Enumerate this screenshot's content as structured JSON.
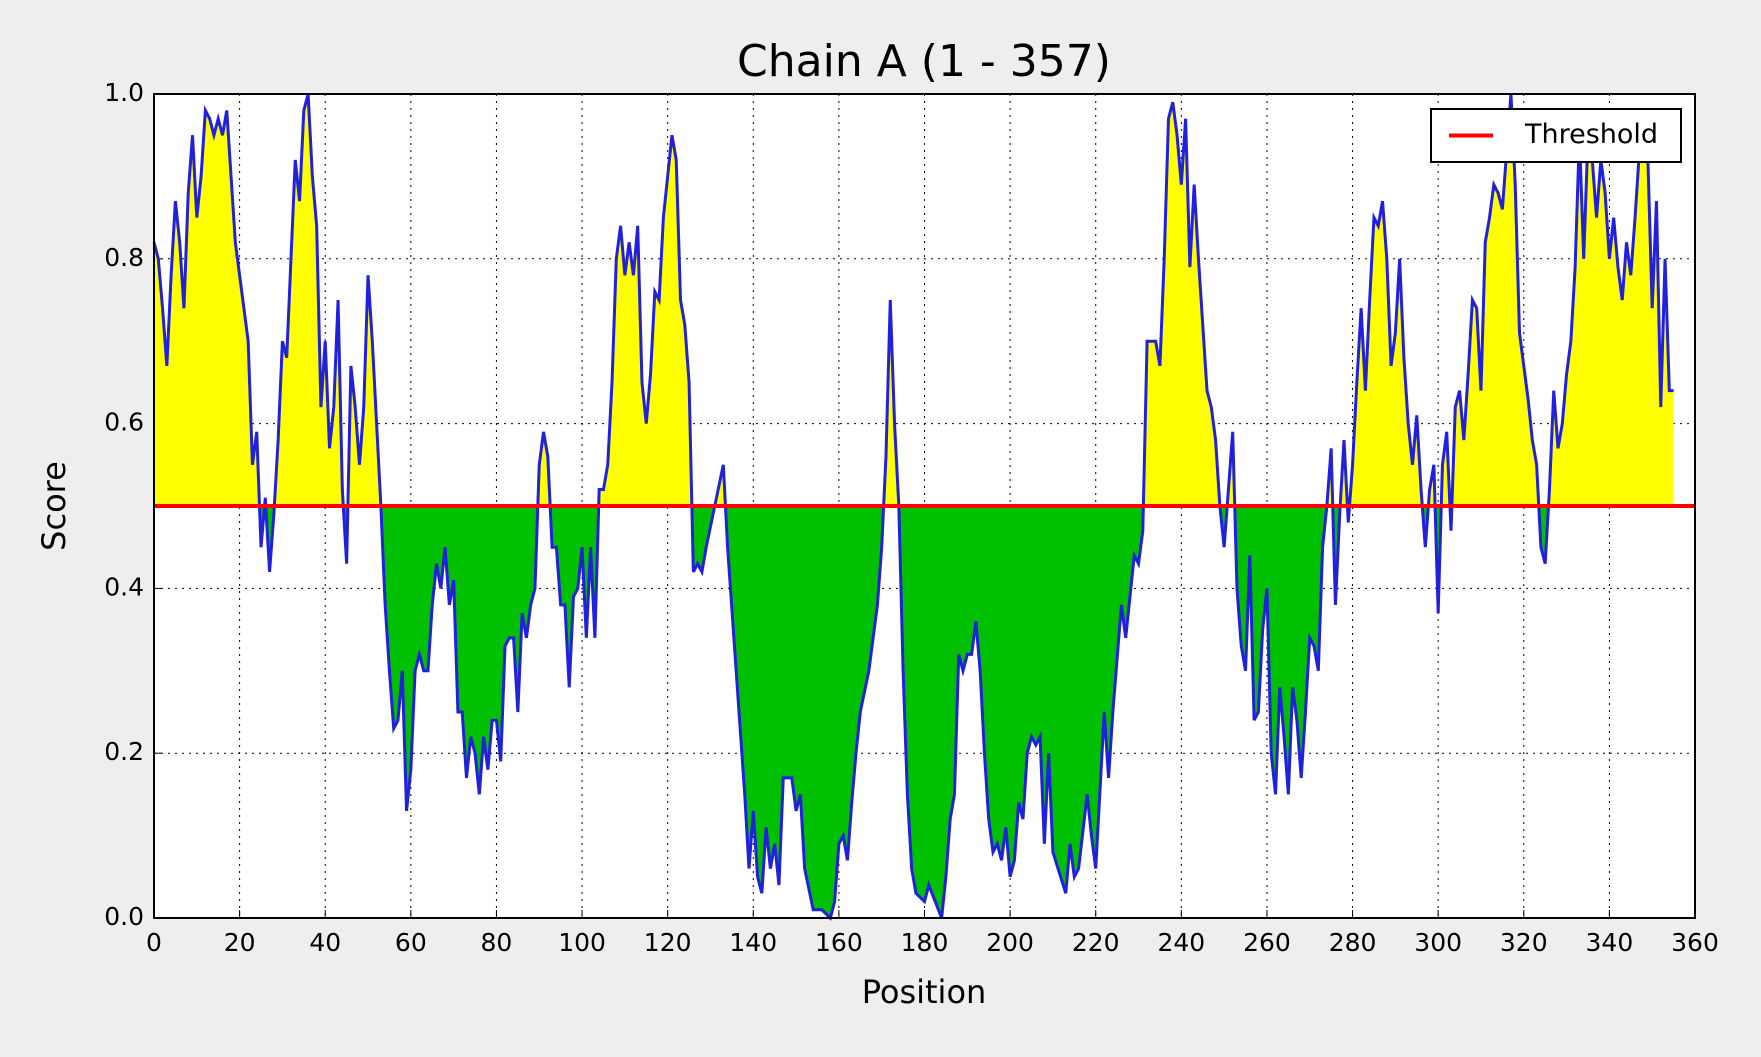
{
  "chart_data": {
    "type": "line",
    "title": "Chain A (1 - 357)",
    "x_label": "Position",
    "y_label": "Score",
    "x": [
      0,
      1,
      2,
      3,
      4,
      5,
      6,
      7,
      8,
      9,
      10,
      11,
      12,
      13,
      14,
      15,
      16,
      17,
      18,
      19,
      20,
      21,
      22,
      23,
      24,
      25,
      26,
      27,
      28,
      29,
      30,
      31,
      32,
      33,
      34,
      35,
      36,
      37,
      38,
      39,
      40,
      41,
      42,
      43,
      44,
      45,
      46,
      47,
      48,
      49,
      50,
      51,
      52,
      53,
      54,
      55,
      56,
      57,
      58,
      59,
      60,
      61,
      62,
      63,
      64,
      65,
      66,
      67,
      68,
      69,
      70,
      71,
      72,
      73,
      74,
      75,
      76,
      77,
      78,
      79,
      80,
      81,
      82,
      83,
      84,
      85,
      86,
      87,
      88,
      89,
      90,
      91,
      92,
      93,
      94,
      95,
      96,
      97,
      98,
      99,
      100,
      101,
      102,
      103,
      104,
      105,
      106,
      107,
      108,
      109,
      110,
      111,
      112,
      113,
      114,
      115,
      116,
      117,
      118,
      119,
      120,
      121,
      122,
      123,
      124,
      125,
      126,
      127,
      128,
      129,
      131,
      133,
      134,
      136,
      138,
      139,
      140,
      141,
      142,
      143,
      144,
      145,
      146,
      147,
      149,
      150,
      151,
      152,
      154,
      156,
      158,
      159,
      160,
      161,
      162,
      163,
      164,
      165,
      167,
      169,
      170,
      171,
      172,
      173,
      174,
      175,
      176,
      177,
      178,
      180,
      181,
      184,
      185,
      186,
      187,
      188,
      189,
      190,
      191,
      192,
      193,
      194,
      195,
      196,
      197,
      198,
      199,
      200,
      201,
      202,
      203,
      204,
      205,
      206,
      207,
      208,
      209,
      210,
      213,
      214,
      215,
      216,
      218,
      219,
      220,
      222,
      223,
      224,
      226,
      227,
      229,
      230,
      231,
      232,
      234,
      235,
      236,
      237,
      238,
      239,
      240,
      241,
      242,
      243,
      244,
      245,
      246,
      247,
      248,
      249,
      250,
      251,
      252,
      253,
      254,
      255,
      256,
      257,
      258,
      259,
      260,
      261,
      262,
      263,
      264,
      265,
      266,
      267,
      268,
      269,
      270,
      271,
      272,
      273,
      274,
      275,
      276,
      277,
      278,
      279,
      280,
      281,
      282,
      283,
      284,
      285,
      286,
      287,
      288,
      289,
      290,
      291,
      292,
      293,
      294,
      295,
      296,
      297,
      298,
      299,
      300,
      301,
      302,
      303,
      304,
      305,
      306,
      307,
      308,
      309,
      310,
      311,
      312,
      313,
      314,
      315,
      316,
      317,
      318,
      319,
      320,
      321,
      322,
      323,
      324,
      325,
      326,
      327,
      328,
      329,
      330,
      331,
      332,
      333,
      334,
      335,
      336,
      337,
      338,
      339,
      340,
      341,
      342,
      343,
      344,
      345,
      346,
      347,
      348,
      349,
      350,
      351,
      352,
      353,
      354,
      355
    ],
    "series": [
      {
        "name": "Score",
        "color": "#2020dd",
        "values": [
          0.82,
          0.8,
          0.74,
          0.67,
          0.78,
          0.87,
          0.82,
          0.74,
          0.88,
          0.95,
          0.85,
          0.9,
          0.98,
          0.97,
          0.95,
          0.97,
          0.95,
          0.98,
          0.9,
          0.82,
          0.78,
          0.74,
          0.7,
          0.55,
          0.59,
          0.45,
          0.51,
          0.42,
          0.49,
          0.58,
          0.7,
          0.68,
          0.8,
          0.92,
          0.87,
          0.98,
          1.0,
          0.9,
          0.84,
          0.62,
          0.7,
          0.57,
          0.62,
          0.75,
          0.52,
          0.43,
          0.67,
          0.62,
          0.55,
          0.62,
          0.78,
          0.7,
          0.6,
          0.5,
          0.38,
          0.3,
          0.23,
          0.24,
          0.3,
          0.13,
          0.18,
          0.3,
          0.32,
          0.3,
          0.3,
          0.38,
          0.43,
          0.4,
          0.45,
          0.38,
          0.41,
          0.25,
          0.25,
          0.17,
          0.22,
          0.2,
          0.15,
          0.22,
          0.18,
          0.24,
          0.24,
          0.19,
          0.33,
          0.34,
          0.34,
          0.25,
          0.37,
          0.34,
          0.38,
          0.4,
          0.55,
          0.59,
          0.56,
          0.45,
          0.45,
          0.38,
          0.38,
          0.28,
          0.39,
          0.4,
          0.45,
          0.34,
          0.45,
          0.34,
          0.52,
          0.52,
          0.55,
          0.65,
          0.8,
          0.84,
          0.78,
          0.82,
          0.78,
          0.84,
          0.65,
          0.6,
          0.66,
          0.76,
          0.75,
          0.85,
          0.9,
          0.95,
          0.92,
          0.75,
          0.72,
          0.65,
          0.42,
          0.43,
          0.42,
          0.45,
          0.5,
          0.55,
          0.45,
          0.3,
          0.15,
          0.06,
          0.13,
          0.05,
          0.03,
          0.11,
          0.06,
          0.09,
          0.04,
          0.17,
          0.17,
          0.13,
          0.15,
          0.06,
          0.01,
          0.01,
          0,
          0.02,
          0.09,
          0.1,
          0.07,
          0.14,
          0.2,
          0.25,
          0.3,
          0.38,
          0.45,
          0.56,
          0.75,
          0.6,
          0.5,
          0.3,
          0.15,
          0.06,
          0.03,
          0.02,
          0.04,
          0,
          0.05,
          0.12,
          0.15,
          0.32,
          0.3,
          0.32,
          0.32,
          0.36,
          0.3,
          0.2,
          0.12,
          0.08,
          0.09,
          0.07,
          0.11,
          0.05,
          0.07,
          0.14,
          0.12,
          0.2,
          0.22,
          0.21,
          0.22,
          0.09,
          0.2,
          0.08,
          0.03,
          0.09,
          0.05,
          0.06,
          0.15,
          0.1,
          0.06,
          0.25,
          0.17,
          0.25,
          0.38,
          0.34,
          0.44,
          0.43,
          0.47,
          0.7,
          0.7,
          0.67,
          0.8,
          0.97,
          0.99,
          0.95,
          0.89,
          0.97,
          0.79,
          0.89,
          0.8,
          0.72,
          0.64,
          0.62,
          0.58,
          0.5,
          0.45,
          0.52,
          0.59,
          0.4,
          0.33,
          0.3,
          0.44,
          0.24,
          0.25,
          0.35,
          0.4,
          0.2,
          0.15,
          0.28,
          0.22,
          0.15,
          0.28,
          0.24,
          0.17,
          0.25,
          0.34,
          0.33,
          0.3,
          0.45,
          0.5,
          0.57,
          0.38,
          0.49,
          0.58,
          0.48,
          0.55,
          0.65,
          0.74,
          0.64,
          0.75,
          0.85,
          0.84,
          0.87,
          0.8,
          0.67,
          0.71,
          0.8,
          0.68,
          0.6,
          0.55,
          0.61,
          0.52,
          0.45,
          0.52,
          0.55,
          0.37,
          0.55,
          0.59,
          0.47,
          0.62,
          0.64,
          0.58,
          0.66,
          0.75,
          0.74,
          0.64,
          0.82,
          0.85,
          0.89,
          0.88,
          0.86,
          0.93,
          1.0,
          0.89,
          0.71,
          0.67,
          0.63,
          0.58,
          0.55,
          0.45,
          0.43,
          0.52,
          0.64,
          0.57,
          0.6,
          0.66,
          0.7,
          0.79,
          0.95,
          0.8,
          0.95,
          0.92,
          0.85,
          0.92,
          0.88,
          0.8,
          0.85,
          0.79,
          0.75,
          0.82,
          0.78,
          0.85,
          0.93,
          0.97,
          0.92,
          0.74,
          0.87,
          0.62,
          0.8,
          0.64,
          0.64
        ]
      }
    ],
    "threshold": {
      "name": "Threshold",
      "value": 0.5,
      "color": "#ff0000"
    },
    "fill_above_color": "#ffff00",
    "fill_below_color": "#00c000",
    "xlim": [
      0,
      360
    ],
    "xticks": [
      0,
      20,
      40,
      60,
      80,
      100,
      120,
      140,
      160,
      180,
      200,
      220,
      240,
      260,
      280,
      300,
      320,
      340,
      360
    ],
    "ylim": [
      0,
      1
    ],
    "yticks": [
      {
        "value": 0,
        "label": "0.0"
      },
      0.2,
      0.4,
      0.6,
      0.8,
      {
        "value": 1,
        "label": "1.0"
      }
    ],
    "grid": true,
    "legend_position": "upper right"
  }
}
